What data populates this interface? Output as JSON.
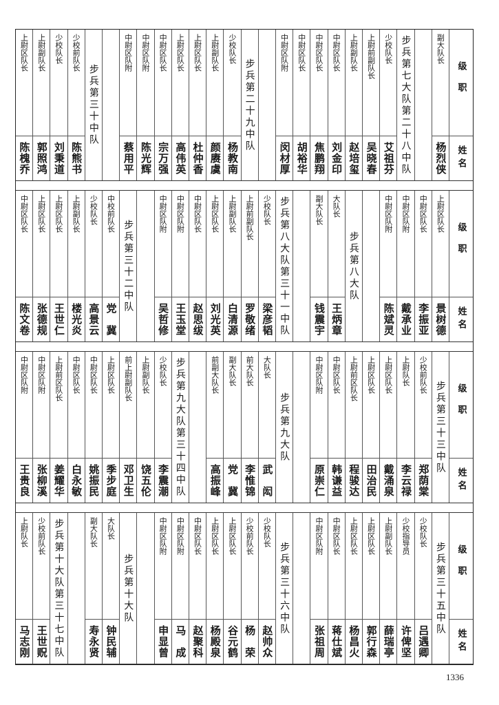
{
  "header": {
    "rank_label": "级职",
    "name_label": "姓名"
  },
  "bands": [
    {
      "columns": [
        {
          "type": "person",
          "rank": "副大队长",
          "name": "杨烈侠"
        },
        {
          "type": "blank"
        },
        {
          "type": "unit",
          "label": "步兵第七大队第二十八中队"
        },
        {
          "type": "person",
          "rank": "少校队长",
          "name": "艾祖芬"
        },
        {
          "type": "person",
          "rank": "上尉前副队长",
          "name": "吴晓春"
        },
        {
          "type": "person",
          "rank": "上尉副队长",
          "name": "赵培玺"
        },
        {
          "type": "person",
          "rank": "中尉区队长",
          "name": "刘金印"
        },
        {
          "type": "person",
          "rank": "中尉区队长",
          "name": "焦鹏翔"
        },
        {
          "type": "person",
          "rank": "中尉区队长",
          "name": "胡裕华"
        },
        {
          "type": "person",
          "rank": "中尉区队附",
          "name": "闵材厚"
        },
        {
          "type": "blank"
        },
        {
          "type": "unit",
          "label": "步兵第二十九中队"
        },
        {
          "type": "person",
          "rank": "少校队长",
          "name": "杨教南"
        },
        {
          "type": "person",
          "rank": "上尉副队长",
          "name": "颜赓虞"
        },
        {
          "type": "person",
          "rank": "上尉区队长",
          "name": "杜仲香"
        },
        {
          "type": "person",
          "rank": "上尉区队长",
          "name": "高伟英"
        },
        {
          "type": "person",
          "rank": "中尉区队长",
          "name": "宗万强"
        },
        {
          "type": "person",
          "rank": "中尉区队附",
          "name": "陈光辉"
        },
        {
          "type": "person",
          "rank": "中尉区队附",
          "name": "蔡用平"
        },
        {
          "type": "blank"
        },
        {
          "type": "unit",
          "label": "步兵第三十中队"
        },
        {
          "type": "person",
          "rank": "少校前队长",
          "name": "陈熊书"
        },
        {
          "type": "person",
          "rank": "少校队长",
          "name": "刘秉道"
        },
        {
          "type": "person",
          "rank": "上尉副队长",
          "name": "郭照鸿"
        },
        {
          "type": "person",
          "rank": "上尉区队长",
          "name": "陈槐乔"
        }
      ]
    },
    {
      "columns": [
        {
          "type": "person",
          "rank": "上尉区队长",
          "name": "景树德"
        },
        {
          "type": "person",
          "rank": "中尉区队长",
          "name": "李振亚"
        },
        {
          "type": "person",
          "rank": "中尉区队附",
          "name": "戴承业"
        },
        {
          "type": "person",
          "rank": "中尉区队附",
          "name": "陈斌灵"
        },
        {
          "type": "blank"
        },
        {
          "type": "unit",
          "label": "步兵第八大队"
        },
        {
          "type": "person",
          "rank": "大队长",
          "name": "王炳章"
        },
        {
          "type": "person",
          "rank": "副大队长",
          "name": "钱震宇"
        },
        {
          "type": "blank"
        },
        {
          "type": "unit",
          "label": "步兵第八大队第三十一中队"
        },
        {
          "type": "person",
          "rank": "少校队长",
          "name": "梁彦韬"
        },
        {
          "type": "person",
          "rank": "上尉前副队长",
          "name": "罗敬绪"
        },
        {
          "type": "person",
          "rank": "上尉副队长",
          "name": "白清源"
        },
        {
          "type": "person",
          "rank": "上尉区队长",
          "name": "刘光英"
        },
        {
          "type": "person",
          "rank": "中尉区队长",
          "name": "赵思绂"
        },
        {
          "type": "person",
          "rank": "中尉区队附",
          "name": "王玉堂"
        },
        {
          "type": "person",
          "rank": "中尉区队附",
          "name": "吴哲修"
        },
        {
          "type": "blank"
        },
        {
          "type": "unit",
          "label": "步兵第三十二中队"
        },
        {
          "type": "person",
          "rank": "中校前队长",
          "name": "党　冀"
        },
        {
          "type": "person",
          "rank": "少校队长",
          "name": "高景云"
        },
        {
          "type": "person",
          "rank": "上尉副队长",
          "name": "楼光炎"
        },
        {
          "type": "person",
          "rank": "上尉区队长",
          "name": "王世仁"
        },
        {
          "type": "person",
          "rank": "上尉区队长",
          "name": "张德规"
        },
        {
          "type": "person",
          "rank": "中尉区队长",
          "name": "陈文卷"
        }
      ]
    },
    {
      "columns": [
        {
          "type": "unit",
          "label": "步兵第三十三中队"
        },
        {
          "type": "person",
          "rank": "少校前队长",
          "name": "郑荫棠"
        },
        {
          "type": "person",
          "rank": "上尉队长",
          "name": "李云禄"
        },
        {
          "type": "person",
          "rank": "上尉区队长",
          "name": "戴涌泉"
        },
        {
          "type": "person",
          "rank": "上尉区队长",
          "name": "田治民"
        },
        {
          "type": "person",
          "rank": "上尉前区队长",
          "name": "程骏达"
        },
        {
          "type": "person",
          "rank": "中尉区队长",
          "name": "韩谦益"
        },
        {
          "type": "person",
          "rank": "中尉区队附",
          "name": "原崇仁"
        },
        {
          "type": "blank"
        },
        {
          "type": "unit",
          "label": "步兵第九大队"
        },
        {
          "type": "person",
          "rank": "大队长",
          "name": "武　闳"
        },
        {
          "type": "person",
          "rank": "前大队长",
          "name": "李惟锦"
        },
        {
          "type": "person",
          "rank": "副大队长",
          "name": "党　冀"
        },
        {
          "type": "person",
          "rank": "前副大队长",
          "name": "高振峰"
        },
        {
          "type": "blank"
        },
        {
          "type": "unit",
          "label": "步兵第九大队第三十四中队"
        },
        {
          "type": "person",
          "rank": "少校队长",
          "name": "李震潮"
        },
        {
          "type": "person",
          "rank": "上尉副队长",
          "name": "饶五伦"
        },
        {
          "type": "person",
          "rank": "前上尉副队长",
          "name": "邓卫生"
        },
        {
          "type": "person",
          "rank": "上尉区队长",
          "name": "季步庭"
        },
        {
          "type": "person",
          "rank": "中尉区队长",
          "name": "姚振民"
        },
        {
          "type": "person",
          "rank": "中尉区队长",
          "name": "白永敏"
        },
        {
          "type": "person",
          "rank": "上尉前区队长",
          "name": "姜耀华"
        },
        {
          "type": "person",
          "rank": "中尉区队附",
          "name": "张柳溪"
        },
        {
          "type": "person",
          "rank": "中尉区队附",
          "name": "王贵良"
        }
      ]
    },
    {
      "columns": [
        {
          "type": "unit",
          "label": "步兵第三十五中队"
        },
        {
          "type": "person",
          "rank": "少校队长",
          "name": "吕遇卿"
        },
        {
          "type": "person",
          "rank": "少校指导员",
          "name": "许俾坚"
        },
        {
          "type": "person",
          "rank": "上尉副队长",
          "name": "薛瑞亭"
        },
        {
          "type": "person",
          "rank": "上尉区队长",
          "name": "郭行森"
        },
        {
          "type": "person",
          "rank": "上尉区队长",
          "name": "杨昌火"
        },
        {
          "type": "person",
          "rank": "中尉区队长",
          "name": "蒋仕斌"
        },
        {
          "type": "person",
          "rank": "中尉区队附",
          "name": "张祖周"
        },
        {
          "type": "blank"
        },
        {
          "type": "unit",
          "label": "步兵第三十六中队"
        },
        {
          "type": "person",
          "rank": "少校队长",
          "name": "赵帅众"
        },
        {
          "type": "person",
          "rank": "少校前队长",
          "name": "杨　荣"
        },
        {
          "type": "person",
          "rank": "上尉区队长",
          "name": "谷元鹤"
        },
        {
          "type": "person",
          "rank": "上尉区队长",
          "name": "杨殿泉"
        },
        {
          "type": "person",
          "rank": "中尉区队长",
          "name": "赵聚科"
        },
        {
          "type": "person",
          "rank": "中尉区队附",
          "name": "马　成"
        },
        {
          "type": "person",
          "rank": "中尉区队附",
          "name": "申显曾"
        },
        {
          "type": "blank"
        },
        {
          "type": "unit",
          "label": "步兵第十大队"
        },
        {
          "type": "person",
          "rank": "大队长",
          "name": "钟民辅"
        },
        {
          "type": "person",
          "rank": "副大队长",
          "name": "寿永贤"
        },
        {
          "type": "blank"
        },
        {
          "type": "unit",
          "label": "步兵第十大队第三十七中队"
        },
        {
          "type": "person",
          "rank": "少校前队长",
          "name": "王世贶"
        },
        {
          "type": "person",
          "rank": "上尉队长",
          "name": "马志刚"
        }
      ]
    }
  ],
  "page_number": "1336"
}
